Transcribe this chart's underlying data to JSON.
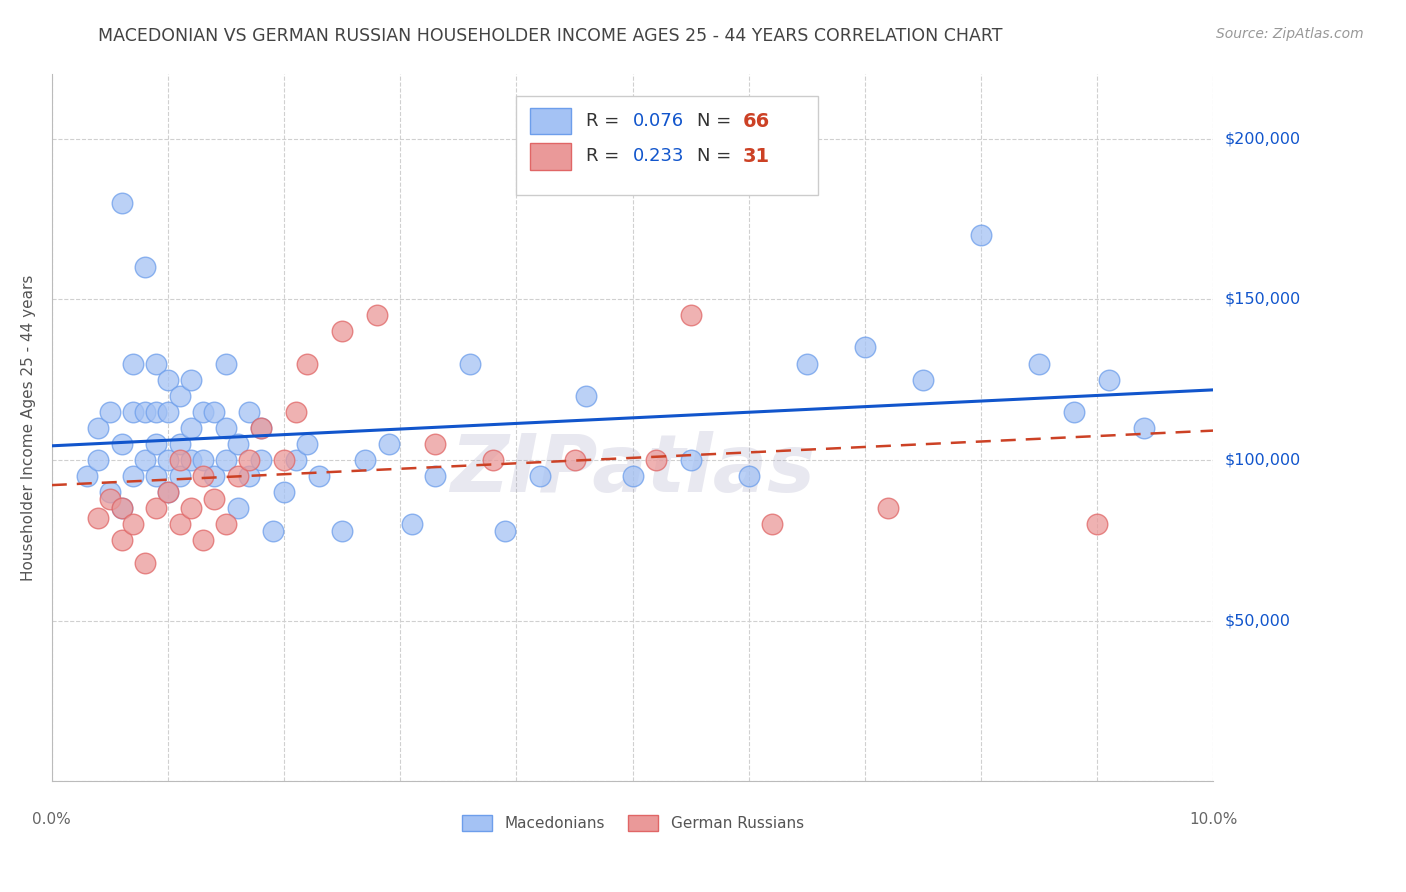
{
  "title": "MACEDONIAN VS GERMAN RUSSIAN HOUSEHOLDER INCOME AGES 25 - 44 YEARS CORRELATION CHART",
  "source": "Source: ZipAtlas.com",
  "ylabel": "Householder Income Ages 25 - 44 years",
  "xlim": [
    0.0,
    0.1
  ],
  "ylim": [
    0,
    220000
  ],
  "ytick_vals": [
    0,
    50000,
    100000,
    150000,
    200000
  ],
  "ytick_labels": [
    "",
    "$50,000",
    "$100,000",
    "$150,000",
    "$200,000"
  ],
  "legend1_R": "0.076",
  "legend1_N": "66",
  "legend2_R": "0.233",
  "legend2_N": "31",
  "blue_scatter_color": "#a4c2f4",
  "blue_edge_color": "#6d9eeb",
  "pink_scatter_color": "#ea9999",
  "pink_edge_color": "#e06666",
  "blue_line_color": "#1155cc",
  "pink_line_color": "#cc4125",
  "right_label_color": "#1155cc",
  "title_color": "#434343",
  "source_color": "#999999",
  "legend_R_color": "#1155cc",
  "legend_N_color": "#cc4125",
  "background_color": "#ffffff",
  "grid_color": "#d0d0d0",
  "mac_x": [
    0.003,
    0.004,
    0.004,
    0.005,
    0.005,
    0.006,
    0.006,
    0.006,
    0.007,
    0.007,
    0.007,
    0.008,
    0.008,
    0.008,
    0.009,
    0.009,
    0.009,
    0.009,
    0.01,
    0.01,
    0.01,
    0.01,
    0.011,
    0.011,
    0.011,
    0.012,
    0.012,
    0.012,
    0.013,
    0.013,
    0.014,
    0.014,
    0.015,
    0.015,
    0.015,
    0.016,
    0.016,
    0.017,
    0.017,
    0.018,
    0.018,
    0.019,
    0.02,
    0.021,
    0.022,
    0.023,
    0.025,
    0.027,
    0.029,
    0.031,
    0.033,
    0.036,
    0.039,
    0.042,
    0.046,
    0.05,
    0.055,
    0.06,
    0.065,
    0.07,
    0.075,
    0.08,
    0.085,
    0.088,
    0.091,
    0.094
  ],
  "mac_y": [
    95000,
    100000,
    110000,
    90000,
    115000,
    85000,
    105000,
    180000,
    95000,
    115000,
    130000,
    100000,
    115000,
    160000,
    95000,
    105000,
    115000,
    130000,
    90000,
    100000,
    115000,
    125000,
    95000,
    105000,
    120000,
    100000,
    110000,
    125000,
    100000,
    115000,
    95000,
    115000,
    100000,
    110000,
    130000,
    85000,
    105000,
    95000,
    115000,
    100000,
    110000,
    78000,
    90000,
    100000,
    105000,
    95000,
    78000,
    100000,
    105000,
    80000,
    95000,
    130000,
    78000,
    95000,
    120000,
    95000,
    100000,
    95000,
    130000,
    135000,
    125000,
    170000,
    130000,
    115000,
    125000,
    110000
  ],
  "gr_x": [
    0.004,
    0.005,
    0.006,
    0.006,
    0.007,
    0.008,
    0.009,
    0.01,
    0.011,
    0.011,
    0.012,
    0.013,
    0.013,
    0.014,
    0.015,
    0.016,
    0.017,
    0.018,
    0.02,
    0.021,
    0.022,
    0.025,
    0.028,
    0.033,
    0.038,
    0.045,
    0.052,
    0.055,
    0.062,
    0.072,
    0.09
  ],
  "gr_y": [
    82000,
    88000,
    75000,
    85000,
    80000,
    68000,
    85000,
    90000,
    80000,
    100000,
    85000,
    95000,
    75000,
    88000,
    80000,
    95000,
    100000,
    110000,
    100000,
    115000,
    130000,
    140000,
    145000,
    105000,
    100000,
    100000,
    100000,
    145000,
    80000,
    85000,
    80000
  ],
  "watermark": "ZIPatlas"
}
